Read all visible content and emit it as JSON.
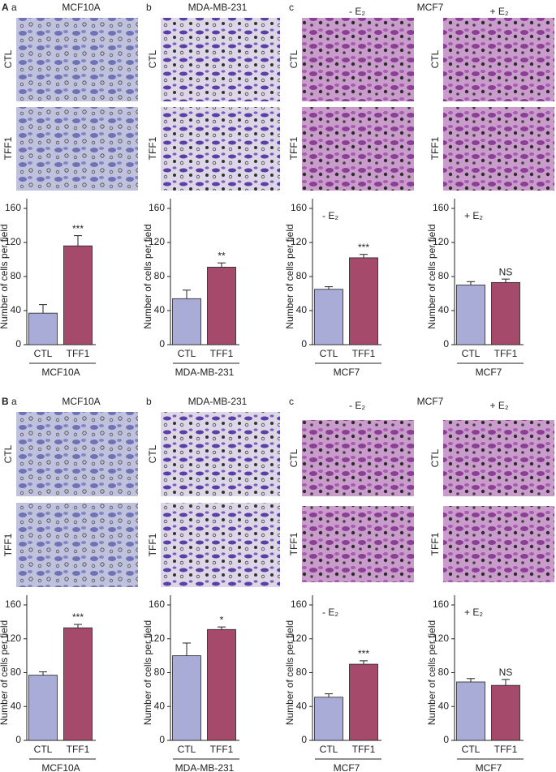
{
  "sections": [
    {
      "letter": "A",
      "image_rows": [
        "CTL",
        "TFF1"
      ],
      "panels": [
        {
          "sub": "a",
          "title": "MCF10A"
        },
        {
          "sub": "b",
          "title": "MDA-MB-231"
        },
        {
          "sub": "c",
          "title": "MCF7",
          "conditions": [
            "- E₂",
            "+ E₂"
          ]
        }
      ]
    },
    {
      "letter": "B",
      "image_rows": [
        "CTL",
        "TFF1"
      ],
      "panels": [
        {
          "sub": "a",
          "title": "MCF10A"
        },
        {
          "sub": "b",
          "title": "MDA-MB-231"
        },
        {
          "sub": "c",
          "title": "MCF7",
          "conditions": [
            "- E₂",
            "+ E₂"
          ]
        }
      ]
    }
  ],
  "chart_data": [
    {
      "type": "bar",
      "ylabel": "Number of cells per field",
      "categories": [
        "CTL",
        "TFF1"
      ],
      "values": [
        37,
        116
      ],
      "errors": [
        10,
        12
      ],
      "colors": [
        "#a9acd6",
        "#a64a6c"
      ],
      "ylim": [
        0,
        160
      ],
      "yticks": [
        0,
        40,
        80,
        120,
        160
      ],
      "annotation": "***",
      "group": "MCF10A"
    },
    {
      "type": "bar",
      "ylabel": "Number of cells per field",
      "categories": [
        "CTL",
        "TFF1"
      ],
      "values": [
        54,
        91
      ],
      "errors": [
        10,
        5
      ],
      "colors": [
        "#a9acd6",
        "#a64a6c"
      ],
      "ylim": [
        0,
        160
      ],
      "yticks": [
        0,
        40,
        80,
        120,
        160
      ],
      "annotation": "**",
      "group": "MDA-MB-231"
    },
    {
      "type": "bar",
      "ylabel": "Number of cells per field",
      "condition": "- E₂",
      "categories": [
        "CTL",
        "TFF1"
      ],
      "values": [
        65,
        102
      ],
      "errors": [
        3,
        4
      ],
      "colors": [
        "#a9acd6",
        "#a64a6c"
      ],
      "ylim": [
        0,
        160
      ],
      "yticks": [
        0,
        40,
        80,
        120,
        160
      ],
      "annotation": "***",
      "group": "MCF7"
    },
    {
      "type": "bar",
      "ylabel": "Number of cells per field",
      "condition": "+ E₂",
      "categories": [
        "CTL",
        "TFF1"
      ],
      "values": [
        70,
        73
      ],
      "errors": [
        4,
        4
      ],
      "colors": [
        "#a9acd6",
        "#a64a6c"
      ],
      "ylim": [
        0,
        160
      ],
      "yticks": [
        0,
        40,
        80,
        120,
        160
      ],
      "annotation": "NS",
      "group": "MCF7"
    },
    {
      "type": "bar",
      "ylabel": "Number of cells per field",
      "categories": [
        "CTL",
        "TFF1"
      ],
      "values": [
        77,
        133
      ],
      "errors": [
        4,
        4
      ],
      "colors": [
        "#a9acd6",
        "#a64a6c"
      ],
      "ylim": [
        0,
        160
      ],
      "yticks": [
        0,
        40,
        80,
        120,
        160
      ],
      "annotation": "***",
      "group": "MCF10A"
    },
    {
      "type": "bar",
      "ylabel": "Number of cells per field",
      "categories": [
        "CTL",
        "TFF1"
      ],
      "values": [
        100,
        131
      ],
      "errors": [
        15,
        3
      ],
      "colors": [
        "#a9acd6",
        "#a64a6c"
      ],
      "ylim": [
        0,
        160
      ],
      "yticks": [
        0,
        40,
        80,
        120,
        160
      ],
      "annotation": "*",
      "group": "MDA-MB-231"
    },
    {
      "type": "bar",
      "ylabel": "Number of cells per field",
      "condition": "- E₂",
      "categories": [
        "CTL",
        "TFF1"
      ],
      "values": [
        51,
        90
      ],
      "errors": [
        4,
        4
      ],
      "colors": [
        "#a9acd6",
        "#a64a6c"
      ],
      "ylim": [
        0,
        160
      ],
      "yticks": [
        0,
        40,
        80,
        120,
        160
      ],
      "annotation": "***",
      "group": "MCF7"
    },
    {
      "type": "bar",
      "ylabel": "Number of cells per field",
      "condition": "+ E₂",
      "categories": [
        "CTL",
        "TFF1"
      ],
      "values": [
        69,
        65
      ],
      "errors": [
        4,
        7
      ],
      "colors": [
        "#a9acd6",
        "#a64a6c"
      ],
      "ylim": [
        0,
        160
      ],
      "yticks": [
        0,
        40,
        80,
        120,
        160
      ],
      "annotation": "NS",
      "group": "MCF7"
    }
  ]
}
